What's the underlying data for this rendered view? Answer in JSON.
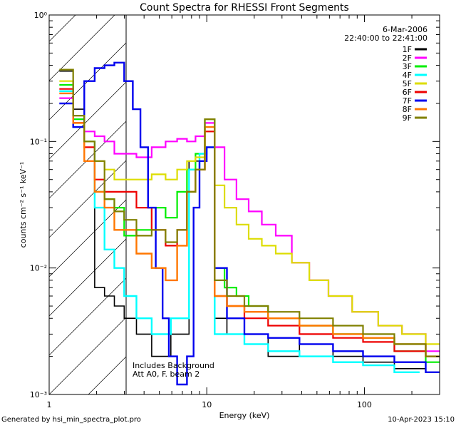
{
  "chart_data": {
    "type": "line",
    "title": "Count Spectra for RHESSI Front Segments",
    "xlabel": "Energy (keV)",
    "ylabel": "counts cm⁻² s⁻¹ keV⁻¹",
    "xscale": "log",
    "yscale": "log",
    "xlim": [
      1,
      300
    ],
    "ylim": [
      0.001,
      1
    ],
    "x_ticks": [
      {
        "value": 1,
        "label": "1"
      },
      {
        "value": 10,
        "label": "10"
      },
      {
        "value": 100,
        "label": "100"
      }
    ],
    "y_ticks": [
      {
        "value": 1,
        "label": "10⁰"
      },
      {
        "value": 0.1,
        "label": "10⁻¹"
      },
      {
        "value": 0.01,
        "label": "10⁻²"
      },
      {
        "value": 0.001,
        "label": "10⁻³"
      }
    ],
    "date": "6-Mar-2006",
    "time_range": "22:40:00 to 22:41:00",
    "excluded_region_max_keV": 3,
    "annotations": [
      "Includes Background",
      "Att A0, F. beam 2"
    ],
    "legend": "top-right",
    "series": [
      {
        "name": "1F",
        "color": "#000000",
        "points": [
          [
            1.3,
            0.36
          ],
          [
            1.55,
            0.18
          ],
          [
            1.8,
            0.09
          ],
          [
            2.1,
            0.007
          ],
          [
            2.4,
            0.006
          ],
          [
            2.8,
            0.005
          ],
          [
            3.2,
            0.004
          ],
          [
            4,
            0.003
          ],
          [
            5,
            0.002
          ],
          [
            7,
            0.003
          ],
          [
            8.5,
            0.07
          ],
          [
            9.5,
            0.08
          ],
          [
            10.5,
            0.09
          ],
          [
            12,
            0.004
          ],
          [
            15,
            0.003
          ],
          [
            20,
            0.003
          ],
          [
            30,
            0.002
          ],
          [
            50,
            0.0025
          ],
          [
            80,
            0.002
          ],
          [
            120,
            0.0018
          ],
          [
            200,
            0.0016
          ],
          [
            300,
            0.0015
          ]
        ]
      },
      {
        "name": "2F",
        "color": "#ff00ff",
        "points": [
          [
            1.3,
            0.22
          ],
          [
            1.55,
            0.14
          ],
          [
            1.8,
            0.12
          ],
          [
            2.1,
            0.11
          ],
          [
            2.4,
            0.1
          ],
          [
            2.8,
            0.08
          ],
          [
            3.2,
            0.08
          ],
          [
            4,
            0.075
          ],
          [
            5,
            0.09
          ],
          [
            6,
            0.1
          ],
          [
            7,
            0.105
          ],
          [
            8,
            0.1
          ],
          [
            9,
            0.11
          ],
          [
            10.5,
            0.14
          ],
          [
            12,
            0.09
          ],
          [
            14,
            0.05
          ],
          [
            17,
            0.035
          ],
          [
            20,
            0.028
          ],
          [
            25,
            0.022
          ],
          [
            30,
            0.018
          ],
          [
            40,
            0.011
          ],
          [
            50,
            0.008
          ],
          [
            70,
            0.006
          ],
          [
            100,
            0.0045
          ],
          [
            150,
            0.0035
          ],
          [
            200,
            0.003
          ],
          [
            300,
            0.0022
          ]
        ]
      },
      {
        "name": "3F",
        "color": "#00ee00",
        "points": [
          [
            1.3,
            0.28
          ],
          [
            1.55,
            0.15
          ],
          [
            1.8,
            0.1
          ],
          [
            2.1,
            0.04
          ],
          [
            2.4,
            0.035
          ],
          [
            2.8,
            0.03
          ],
          [
            3.2,
            0.018
          ],
          [
            4,
            0.02
          ],
          [
            5,
            0.03
          ],
          [
            6,
            0.025
          ],
          [
            7,
            0.04
          ],
          [
            8,
            0.06
          ],
          [
            9,
            0.08
          ],
          [
            10.5,
            0.15
          ],
          [
            12,
            0.01
          ],
          [
            14,
            0.007
          ],
          [
            17,
            0.006
          ],
          [
            20,
            0.005
          ],
          [
            30,
            0.004
          ],
          [
            50,
            0.0035
          ],
          [
            80,
            0.003
          ],
          [
            120,
            0.0028
          ],
          [
            200,
            0.0022
          ],
          [
            300,
            0.0018
          ]
        ]
      },
      {
        "name": "4F",
        "color": "#00ffff",
        "points": [
          [
            1.3,
            0.25
          ],
          [
            1.55,
            0.13
          ],
          [
            1.8,
            0.1
          ],
          [
            2.1,
            0.03
          ],
          [
            2.4,
            0.014
          ],
          [
            2.8,
            0.01
          ],
          [
            3.2,
            0.006
          ],
          [
            4,
            0.004
          ],
          [
            5,
            0.003
          ],
          [
            7,
            0.004
          ],
          [
            8.5,
            0.06
          ],
          [
            9.5,
            0.08
          ],
          [
            10.5,
            0.09
          ],
          [
            12,
            0.003
          ],
          [
            15,
            0.003
          ],
          [
            20,
            0.0025
          ],
          [
            30,
            0.0022
          ],
          [
            50,
            0.002
          ],
          [
            80,
            0.0018
          ],
          [
            120,
            0.0017
          ],
          [
            200,
            0.0015
          ]
        ]
      },
      {
        "name": "5F",
        "color": "#dddd00",
        "points": [
          [
            1.3,
            0.3
          ],
          [
            1.55,
            0.16
          ],
          [
            1.8,
            0.1
          ],
          [
            2.1,
            0.07
          ],
          [
            2.4,
            0.06
          ],
          [
            2.8,
            0.05
          ],
          [
            3.2,
            0.05
          ],
          [
            4,
            0.05
          ],
          [
            5,
            0.055
          ],
          [
            6,
            0.05
          ],
          [
            7,
            0.06
          ],
          [
            8,
            0.07
          ],
          [
            9,
            0.075
          ],
          [
            10.5,
            0.12
          ],
          [
            12,
            0.045
          ],
          [
            14,
            0.03
          ],
          [
            17,
            0.022
          ],
          [
            20,
            0.017
          ],
          [
            25,
            0.015
          ],
          [
            30,
            0.013
          ],
          [
            40,
            0.011
          ],
          [
            50,
            0.008
          ],
          [
            70,
            0.006
          ],
          [
            100,
            0.0045
          ],
          [
            150,
            0.0035
          ],
          [
            200,
            0.003
          ],
          [
            300,
            0.0025
          ]
        ]
      },
      {
        "name": "6F",
        "color": "#ee0000",
        "points": [
          [
            1.3,
            0.26
          ],
          [
            1.55,
            0.14
          ],
          [
            1.8,
            0.09
          ],
          [
            2.1,
            0.05
          ],
          [
            2.4,
            0.04
          ],
          [
            2.8,
            0.04
          ],
          [
            3.2,
            0.04
          ],
          [
            4,
            0.03
          ],
          [
            5,
            0.02
          ],
          [
            6,
            0.015
          ],
          [
            7,
            0.02
          ],
          [
            8,
            0.04
          ],
          [
            9,
            0.06
          ],
          [
            10.5,
            0.12
          ],
          [
            12,
            0.006
          ],
          [
            15,
            0.005
          ],
          [
            20,
            0.004
          ],
          [
            30,
            0.0035
          ],
          [
            50,
            0.003
          ],
          [
            80,
            0.0028
          ],
          [
            120,
            0.0026
          ],
          [
            200,
            0.0022
          ],
          [
            300,
            0.002
          ]
        ]
      },
      {
        "name": "7F",
        "color": "#0000ee",
        "points": [
          [
            1.3,
            0.2
          ],
          [
            1.55,
            0.13
          ],
          [
            1.8,
            0.3
          ],
          [
            2.1,
            0.38
          ],
          [
            2.4,
            0.4
          ],
          [
            2.8,
            0.42
          ],
          [
            3.2,
            0.3
          ],
          [
            3.6,
            0.18
          ],
          [
            4,
            0.09
          ],
          [
            4.5,
            0.03
          ],
          [
            5,
            0.01
          ],
          [
            5.5,
            0.004
          ],
          [
            6,
            0.002
          ],
          [
            7,
            0.0012
          ],
          [
            8,
            0.002
          ],
          [
            8.5,
            0.03
          ],
          [
            9.5,
            0.07
          ],
          [
            10.5,
            0.09
          ],
          [
            12,
            0.01
          ],
          [
            15,
            0.004
          ],
          [
            20,
            0.003
          ],
          [
            30,
            0.0028
          ],
          [
            50,
            0.0025
          ],
          [
            80,
            0.0022
          ],
          [
            120,
            0.002
          ],
          [
            200,
            0.0018
          ],
          [
            300,
            0.0015
          ]
        ]
      },
      {
        "name": "8F",
        "color": "#ff7700",
        "points": [
          [
            1.3,
            0.24
          ],
          [
            1.55,
            0.14
          ],
          [
            1.8,
            0.07
          ],
          [
            2.1,
            0.04
          ],
          [
            2.4,
            0.03
          ],
          [
            2.8,
            0.02
          ],
          [
            3.2,
            0.02
          ],
          [
            4,
            0.013
          ],
          [
            5,
            0.01
          ],
          [
            6,
            0.008
          ],
          [
            7,
            0.015
          ],
          [
            8,
            0.04
          ],
          [
            9,
            0.06
          ],
          [
            10.5,
            0.13
          ],
          [
            12,
            0.006
          ],
          [
            15,
            0.005
          ],
          [
            20,
            0.0045
          ],
          [
            30,
            0.004
          ],
          [
            50,
            0.0035
          ],
          [
            80,
            0.003
          ],
          [
            120,
            0.0028
          ],
          [
            200,
            0.0025
          ],
          [
            300,
            0.002
          ]
        ]
      },
      {
        "name": "9F",
        "color": "#808000",
        "points": [
          [
            1.3,
            0.37
          ],
          [
            1.55,
            0.16
          ],
          [
            1.8,
            0.1
          ],
          [
            2.1,
            0.07
          ],
          [
            2.4,
            0.035
          ],
          [
            2.8,
            0.028
          ],
          [
            3.2,
            0.024
          ],
          [
            4,
            0.018
          ],
          [
            5,
            0.02
          ],
          [
            6,
            0.016
          ],
          [
            7,
            0.02
          ],
          [
            8,
            0.04
          ],
          [
            9,
            0.06
          ],
          [
            10.5,
            0.15
          ],
          [
            12,
            0.008
          ],
          [
            15,
            0.006
          ],
          [
            20,
            0.005
          ],
          [
            30,
            0.0045
          ],
          [
            50,
            0.004
          ],
          [
            80,
            0.0035
          ],
          [
            120,
            0.003
          ],
          [
            200,
            0.0025
          ],
          [
            300,
            0.002
          ]
        ]
      }
    ]
  },
  "footer": {
    "generated_by": "Generated by hsi_min_spectra_plot.pro",
    "timestamp": "10-Apr-2023 15:10"
  }
}
